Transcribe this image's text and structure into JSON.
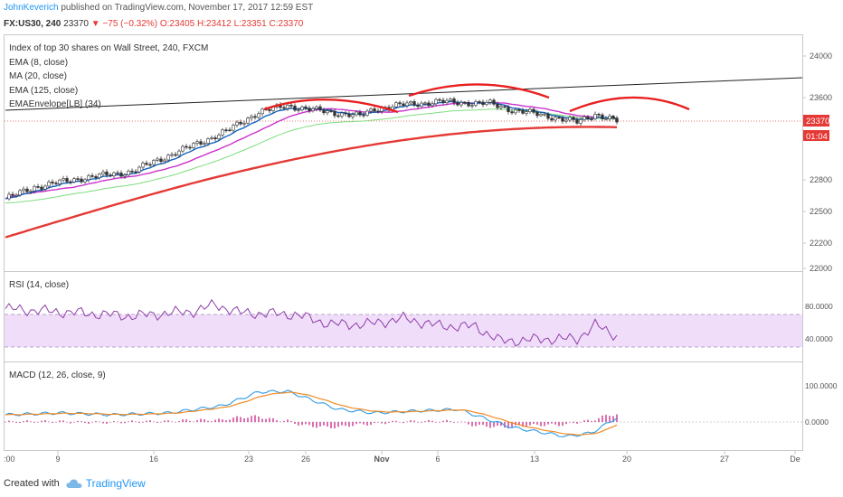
{
  "header": {
    "author": "JohnKeverich",
    "published": "published on TradingView.com, November 17, 2017 12:59 EST",
    "symbol": "FX:US30, 240",
    "price": "23370",
    "arrow": "▼",
    "change": "−75 (−0.32%)",
    "ohlc": {
      "o": "O:23405",
      "h": "H:23412",
      "l": "L:23351",
      "c": "C:23370"
    }
  },
  "legend": {
    "title": "Index of top 30 shares on Wall Street, 240, FXCM",
    "items": [
      "EMA (8, close)",
      "MA (20, close)",
      "EMA (125, close)",
      "EMAEnvelope[LB] (34)"
    ]
  },
  "badges": {
    "price": "23370",
    "countdown": "01:04"
  },
  "footer": {
    "created_with": "Created with",
    "brand": "TradingView"
  },
  "colors": {
    "ema8": "#1565c0",
    "ma20": "#cc33cc",
    "ema125": "#e53935",
    "envelope": "#7ddc7d",
    "rsi": "#8e3fa8",
    "macd": "#2e9be6",
    "signal": "#f08a24",
    "hist": "#d44d9c",
    "annot": "#e82020"
  },
  "chart_data": [
    {
      "type": "candlestick",
      "title": "Index of top 30 shares on Wall Street, 240, FXCM",
      "y_ticks": [
        24000,
        23600,
        22800,
        22500,
        22200,
        22000
      ],
      "x_ticks": [
        "9",
        "16",
        "23",
        "26",
        "Nov",
        "6",
        "13",
        "20",
        "27",
        "De"
      ],
      "last_price": 23370,
      "series": [
        {
          "name": "EMA (8, close)"
        },
        {
          "name": "MA (20, close)"
        },
        {
          "name": "EMA (125, close)"
        },
        {
          "name": "EMAEnvelope[LB] (34)"
        }
      ],
      "annotations": [
        "trendline",
        "arc",
        "arc",
        "arc"
      ]
    },
    {
      "type": "line",
      "title": "RSI (14, close)",
      "y_ticks": [
        80,
        40
      ],
      "y_tick_labels": [
        "80.0000",
        "40.0000"
      ],
      "band": [
        30,
        70
      ]
    },
    {
      "type": "line",
      "title": "MACD (12, 26, close, 9)",
      "y_ticks": [
        100,
        0
      ],
      "y_tick_labels": [
        "100.0000",
        "0.0000"
      ],
      "series": [
        {
          "name": "MACD"
        },
        {
          "name": "Signal"
        },
        {
          "name": "Histogram"
        }
      ]
    }
  ]
}
